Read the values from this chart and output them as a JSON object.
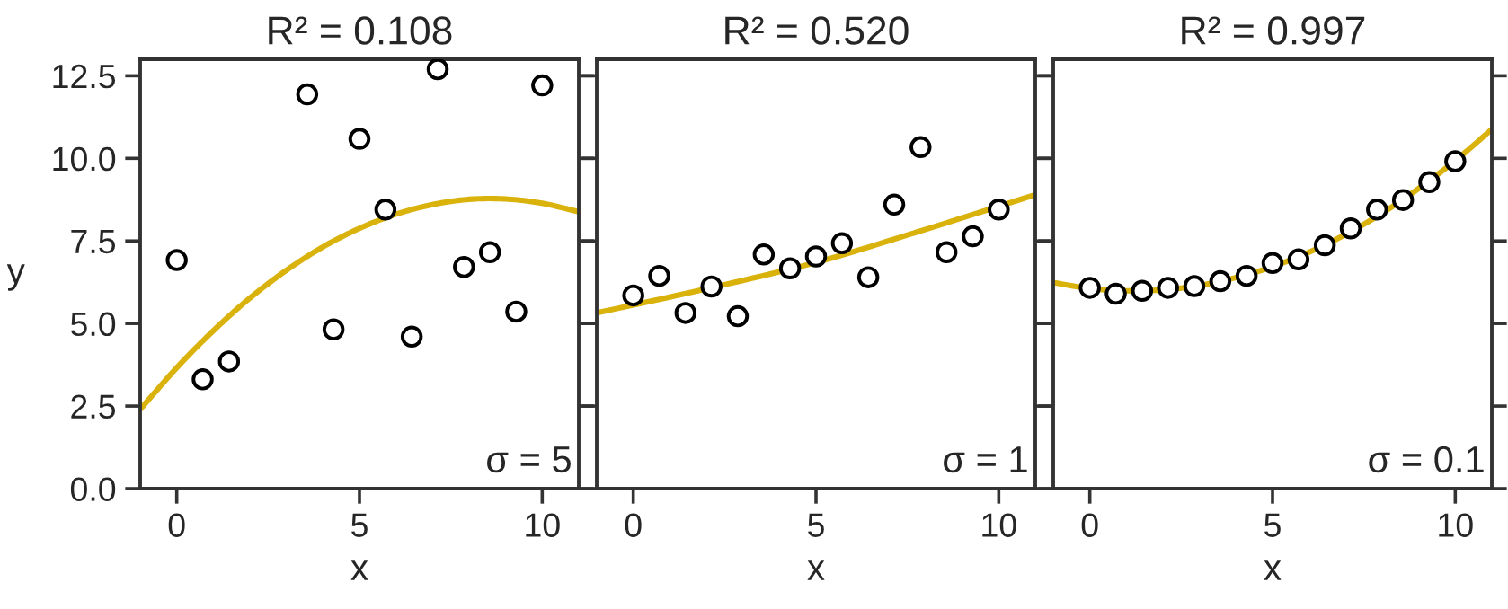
{
  "chart_data": [
    {
      "type": "scatter",
      "title": "R² = 0.108",
      "xlabel": "x",
      "ylabel": "y",
      "xlim": [
        -1,
        11
      ],
      "ylim": [
        0,
        13
      ],
      "xticks": [
        0,
        5,
        10
      ],
      "yticks": [
        {
          "value": 0,
          "label": "0.0"
        },
        {
          "value": 2.5,
          "label": "2.5"
        },
        {
          "value": 5,
          "label": "5.0"
        },
        {
          "value": 7.5,
          "label": "7.5"
        },
        {
          "value": 10,
          "label": "10.0"
        },
        {
          "value": 12.5,
          "label": "12.5"
        }
      ],
      "annotations": [
        "σ = 5"
      ],
      "series": [
        {
          "marker": "circle",
          "color": "#000000",
          "x": [
            0,
            0.71,
            1.43,
            2.14,
            2.86,
            3.57,
            4.29,
            5,
            5.71,
            6.43,
            7.14,
            7.86,
            8.57,
            9.29,
            10
          ],
          "values": [
            6.92,
            3.31,
            3.85,
            null,
            null,
            11.94,
            4.82,
            10.59,
            8.45,
            4.6,
            12.7,
            6.71,
            7.16,
            5.36,
            12.21
          ]
        },
        {
          "type": "line",
          "color": "#d9b20b",
          "x": [
            -1,
            0,
            1,
            2,
            3,
            4,
            5,
            6,
            7,
            8,
            9,
            10,
            11
          ],
          "values": [
            2.4,
            3.66,
            4.78,
            5.77,
            6.61,
            7.32,
            7.88,
            8.31,
            8.6,
            8.76,
            8.77,
            8.64,
            8.38
          ]
        }
      ]
    },
    {
      "type": "scatter",
      "title": "R² = 0.520",
      "xlabel": "x",
      "tick_labels": "x",
      "xlim": [
        -1,
        11
      ],
      "ylim": [
        0,
        13
      ],
      "xticks": [
        0,
        5,
        10
      ],
      "yticks": [
        0,
        2.5,
        5,
        7.5,
        10,
        12.5
      ],
      "annotations": [
        "σ = 1"
      ],
      "series": [
        {
          "marker": "circle",
          "color": "#000000",
          "x": [
            0,
            0.71,
            1.43,
            2.14,
            2.86,
            3.57,
            4.29,
            5,
            5.71,
            6.43,
            7.14,
            7.86,
            8.57,
            9.29,
            10
          ],
          "values": [
            5.85,
            6.44,
            5.32,
            6.12,
            5.22,
            7.09,
            6.67,
            7.03,
            7.43,
            6.4,
            8.6,
            10.34,
            7.16,
            7.64,
            8.45
          ]
        },
        {
          "type": "line",
          "color": "#d9b20b",
          "x": [
            -1,
            2,
            5,
            8,
            11
          ],
          "values": [
            5.32,
            6.05,
            6.85,
            7.85,
            8.9
          ]
        }
      ]
    },
    {
      "type": "scatter",
      "title": "R² = 0.997",
      "xlabel": "x",
      "tick_labels": "x",
      "xlim": [
        -1,
        11
      ],
      "ylim": [
        0,
        13
      ],
      "xticks": [
        0,
        5,
        10
      ],
      "yticks": [
        0,
        2.5,
        5,
        7.5,
        10,
        12.5
      ],
      "annotations": [
        "σ = 0.1"
      ],
      "series": [
        {
          "marker": "circle",
          "color": "#000000",
          "x": [
            0,
            0.71,
            1.43,
            2.14,
            2.86,
            3.57,
            4.29,
            5,
            5.71,
            6.43,
            7.14,
            7.86,
            8.57,
            9.29,
            10
          ],
          "values": [
            6.08,
            5.9,
            5.99,
            6.08,
            6.13,
            6.28,
            6.44,
            6.83,
            6.94,
            7.37,
            7.88,
            8.45,
            8.74,
            9.28,
            9.91
          ]
        },
        {
          "type": "line",
          "color": "#d9b20b",
          "x": [
            -1,
            0,
            1,
            2,
            3,
            4,
            5,
            6,
            7,
            8,
            9,
            10,
            11
          ],
          "values": [
            6.24,
            6.06,
            5.99,
            6.02,
            6.15,
            6.39,
            6.72,
            7.16,
            7.7,
            8.34,
            9.09,
            9.93,
            10.88
          ]
        }
      ]
    }
  ]
}
